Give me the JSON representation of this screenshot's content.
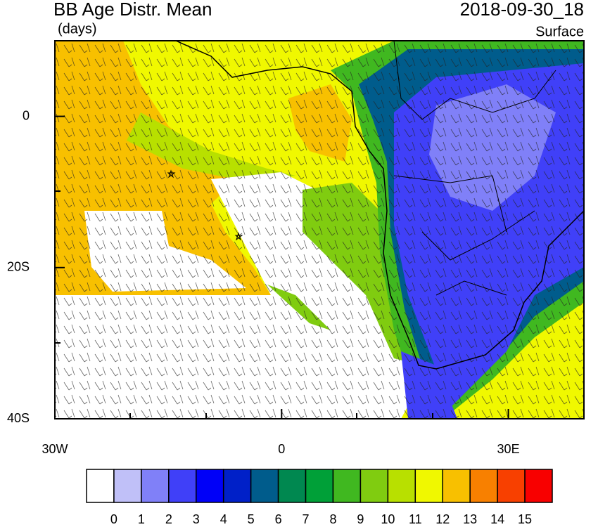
{
  "header": {
    "title": "BB Age Distr. Mean",
    "units": "(days)",
    "date": "2018-09-30_18",
    "level": "Surface"
  },
  "map": {
    "xlim": [
      -30,
      40
    ],
    "ylim": [
      -40,
      10
    ],
    "xticks": [
      {
        "value": -30,
        "label": "30W"
      },
      0,
      {
        "value": 30,
        "label": "30E"
      }
    ],
    "yticks": [
      0,
      {
        "value": -20,
        "label": "20S"
      },
      {
        "value": -40,
        "label": "40S"
      }
    ]
  },
  "colorbar": {
    "labels": [
      0,
      1,
      2,
      3,
      4,
      5,
      6,
      7,
      8,
      9,
      10,
      11,
      12,
      13,
      14,
      15
    ],
    "colors": [
      "#ffffff",
      "#c0c0f8",
      "#8080f8",
      "#4040f8",
      "#0000f8",
      "#0020c8",
      "#005c8c",
      "#008850",
      "#00a038",
      "#40b820",
      "#80cc10",
      "#b8e000",
      "#f0f800",
      "#f8c000",
      "#f88000",
      "#f84000",
      "#f80000"
    ]
  }
}
